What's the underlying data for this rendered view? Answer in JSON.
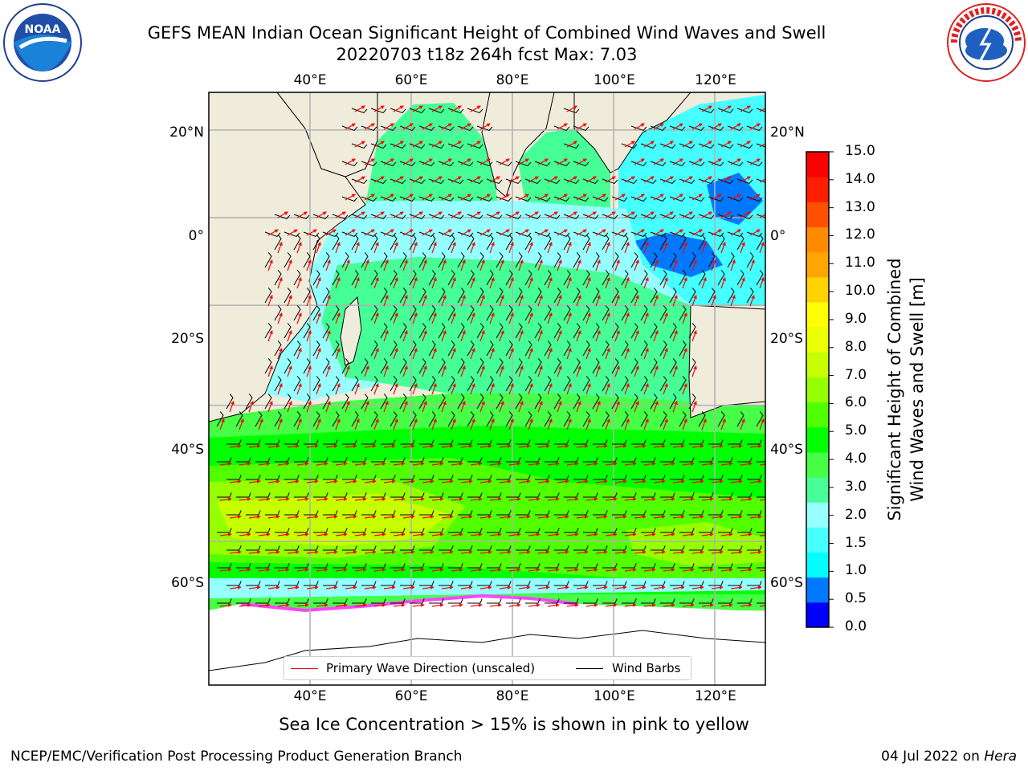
{
  "header": {
    "title_line1": "GEFS MEAN Indian Ocean Significant Height of Combined Wind Waves and Swell",
    "title_line2": "20220703 t18z 264h fcst   Max: 7.03"
  },
  "logos": {
    "noaa_text": "NOAA",
    "noaa_ring_text": "NATIONAL OCEANIC AND ATMOSPHERIC ADMINISTRATION · U.S. DEPARTMENT OF COMMERCE",
    "nws_ring_text": "NATIONAL WEATHER SERVICE"
  },
  "map": {
    "lon_ticks": [
      "40°E",
      "60°E",
      "80°E",
      "100°E",
      "120°E"
    ],
    "lat_ticks": [
      "20°N",
      "0°",
      "20°S",
      "40°S",
      "60°S"
    ],
    "lon_values": [
      40,
      60,
      80,
      100,
      120
    ],
    "lat_values": [
      20,
      0,
      -20,
      -40,
      -60
    ],
    "extent": {
      "lon_min": 20,
      "lon_max": 130,
      "lat_min": -73,
      "lat_max": 28
    },
    "colors": {
      "land": "#efecdc",
      "ice": "#ffffff",
      "grid": "#b0b0b0",
      "arrows": "#ff0000",
      "barbs": "#000000"
    }
  },
  "legend": {
    "primary_wave": "Primary Wave Direction (unscaled)",
    "wind_barbs": "Wind Barbs"
  },
  "colorbar": {
    "label_line1": "Significant Height of Combined",
    "label_line2": "Wind Waves and Swell [m]",
    "ticks": [
      "15.0",
      "14.0",
      "13.0",
      "12.0",
      "11.0",
      "10.0",
      "9.0",
      "8.0",
      "7.0",
      "6.0",
      "5.0",
      "4.0",
      "3.0",
      "2.0",
      "1.5",
      "1.0",
      "0.5",
      "0.0"
    ],
    "colors": [
      "#0000ff",
      "#0078ff",
      "#00ffff",
      "#46ffff",
      "#96ffff",
      "#46ff96",
      "#46ff46",
      "#00ff00",
      "#50ff00",
      "#96ff00",
      "#c8ff00",
      "#eaff00",
      "#ffff00",
      "#ffd200",
      "#ffa500",
      "#ff8c00",
      "#ff5000",
      "#ff1e00",
      "#ff0000"
    ]
  },
  "subtitle": "Sea Ice Concentration > 15% is shown in pink to yellow",
  "footer": {
    "left": "NCEP/EMC/Verification Post Processing Product Generation Branch",
    "right_prefix": "04 Jul 2022 on ",
    "right_host": "Hera"
  }
}
